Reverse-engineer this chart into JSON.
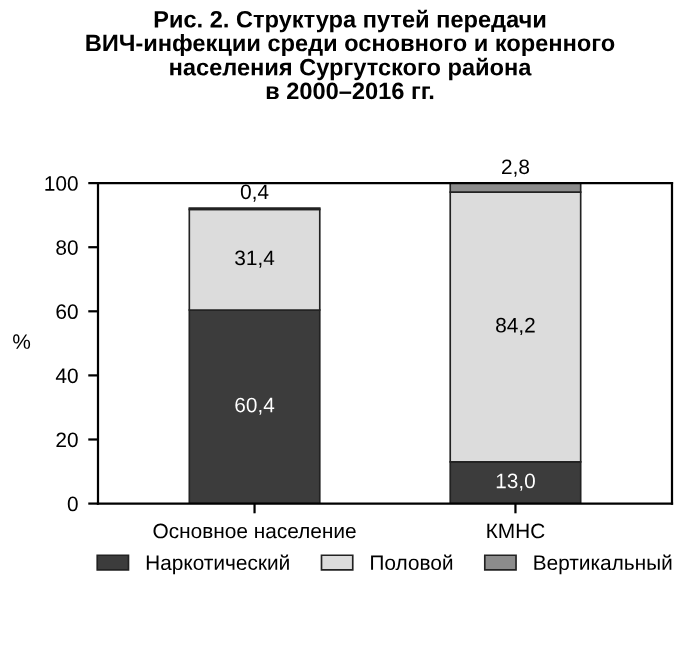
{
  "chart_data": {
    "type": "bar",
    "stacked": true,
    "title": "Рис. 2. Структура путей передачи\nВИЧ-инфекции среди основного и коренного\nнаселения Сургутского района\nв 2000–2016 гг.",
    "ylabel": "%",
    "categories": [
      "Основное население",
      "КМНС"
    ],
    "series": [
      {
        "name": "Наркотический",
        "color": "#3c3c3c",
        "values": [
          60.4,
          13.0
        ],
        "value_labels": [
          "60,4",
          "13,0"
        ]
      },
      {
        "name": "Половой",
        "color": "#dcdcdc",
        "values": [
          31.4,
          84.2
        ],
        "value_labels": [
          "31,4",
          "84,2"
        ]
      },
      {
        "name": "Вертикальный",
        "color": "#8c8c8c",
        "values": [
          0.4,
          2.8
        ],
        "value_labels": [
          "0,4",
          "2,8"
        ]
      }
    ],
    "ylim": [
      0,
      100
    ],
    "yticks": [
      0,
      20,
      40,
      60,
      80,
      100
    ],
    "grid": false,
    "legend": "bottom"
  }
}
